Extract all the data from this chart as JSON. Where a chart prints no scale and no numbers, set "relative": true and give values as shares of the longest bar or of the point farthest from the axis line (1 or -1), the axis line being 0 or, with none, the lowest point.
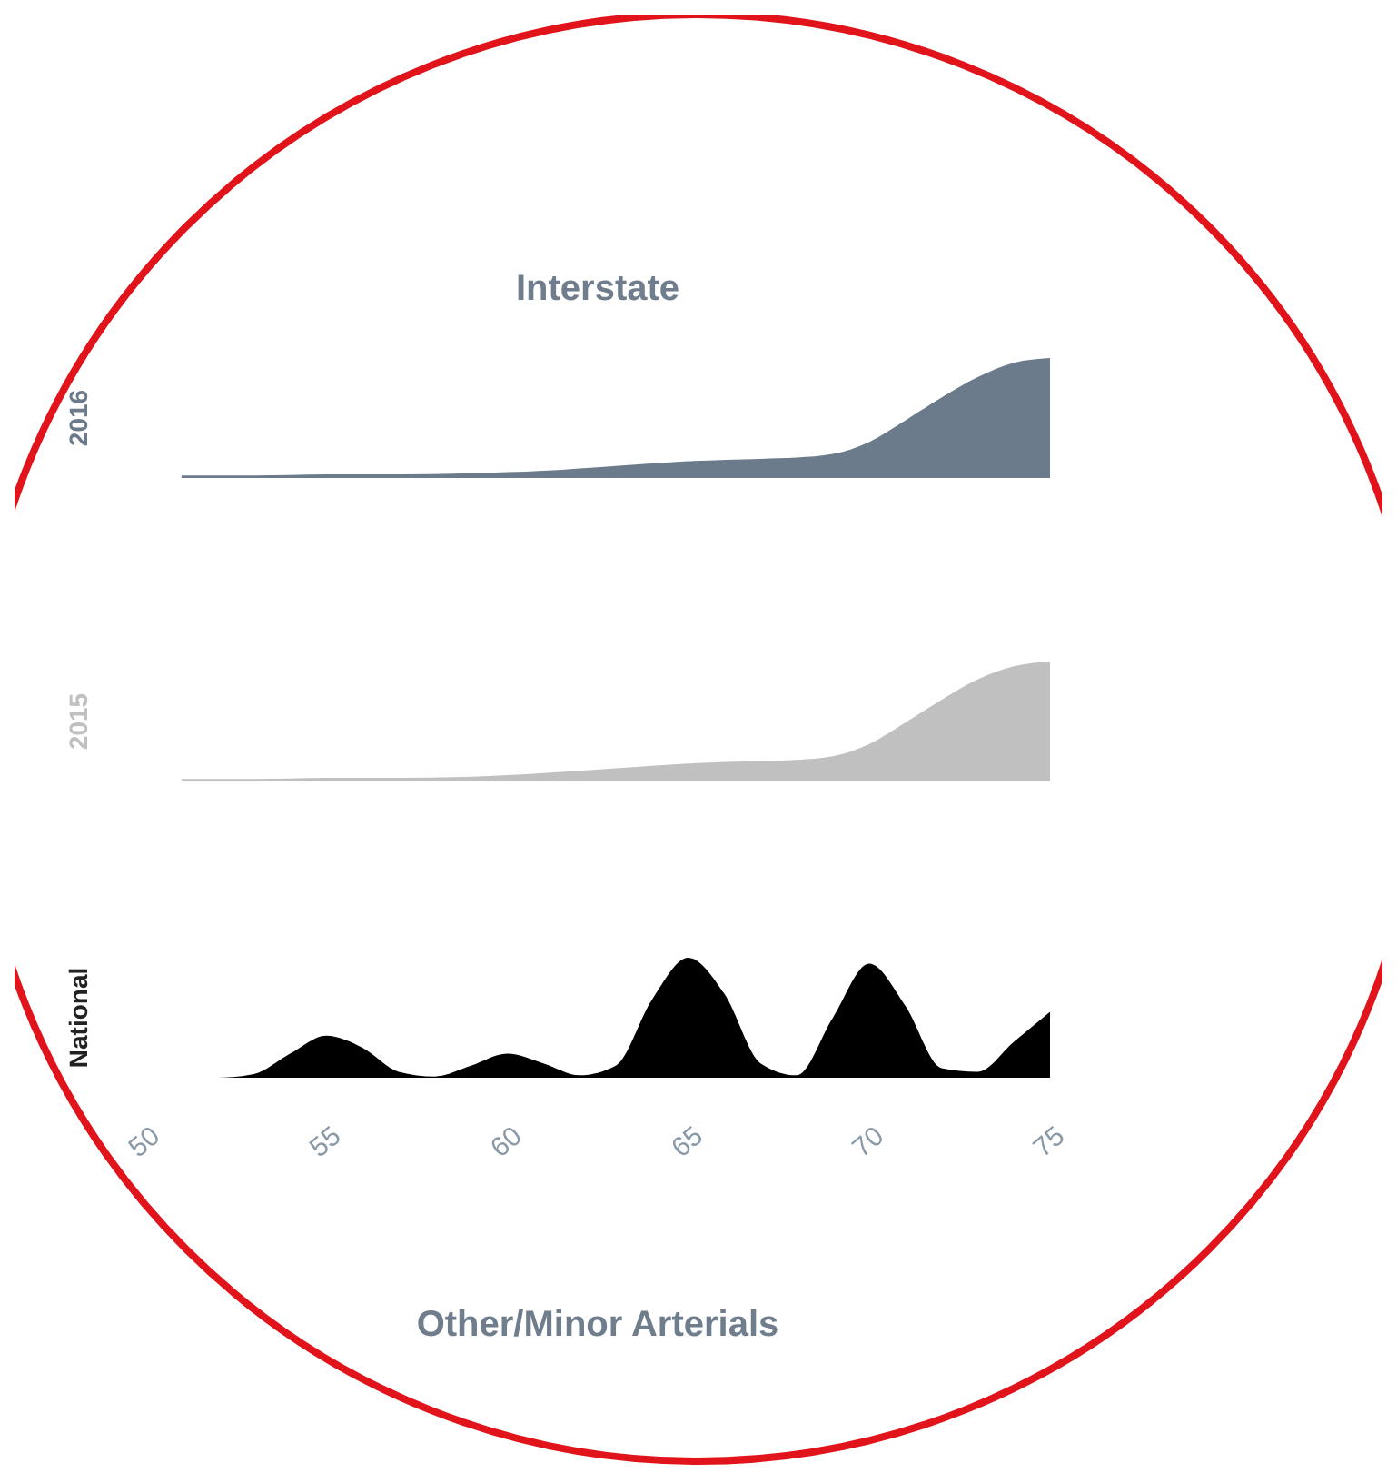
{
  "chart_data": [
    {
      "type": "area",
      "title": "Interstate",
      "ylabel": "2016",
      "relative": true,
      "tick_labels": false,
      "xlim": [
        50,
        75
      ],
      "xticks": [
        50,
        55,
        60,
        65,
        70,
        75
      ],
      "x": [
        51,
        53,
        55,
        57,
        59,
        61,
        63,
        65,
        67,
        68,
        69,
        70,
        71,
        72,
        73,
        74,
        75
      ],
      "series": [
        {
          "color": "#6b7b8c",
          "values": [
            0.02,
            0.02,
            0.03,
            0.03,
            0.04,
            0.06,
            0.1,
            0.14,
            0.16,
            0.17,
            0.2,
            0.3,
            0.48,
            0.67,
            0.84,
            0.96,
            1
          ]
        }
      ]
    },
    {
      "type": "area",
      "ylabel": "2015",
      "relative": true,
      "tick_labels": false,
      "xlim": [
        50,
        75
      ],
      "xticks": [
        50,
        55,
        60,
        65,
        70,
        75
      ],
      "x": [
        51,
        53,
        55,
        57,
        59,
        61,
        63,
        65,
        67,
        68,
        69,
        70,
        71,
        72,
        73,
        74,
        75
      ],
      "series": [
        {
          "color": "#c0c0c0",
          "values": [
            0.02,
            0.02,
            0.03,
            0.03,
            0.04,
            0.07,
            0.11,
            0.15,
            0.17,
            0.18,
            0.21,
            0.31,
            0.49,
            0.68,
            0.85,
            0.96,
            1
          ]
        }
      ]
    },
    {
      "type": "area",
      "ylabel": "National",
      "relative": true,
      "tick_labels": "x",
      "xlim": [
        50,
        75
      ],
      "xticks": [
        50,
        55,
        60,
        65,
        70,
        75
      ],
      "annotations": [
        "Other/Minor Arterials"
      ],
      "x": [
        51,
        52,
        53,
        54,
        55,
        56,
        57,
        58,
        59,
        60,
        61,
        62,
        63,
        64,
        65,
        66,
        67,
        68,
        69,
        70,
        71,
        72,
        73,
        74,
        75
      ],
      "series": [
        {
          "color": "#000000",
          "values": [
            0,
            0,
            0.03,
            0.2,
            0.35,
            0.25,
            0.05,
            0.01,
            0.1,
            0.2,
            0.12,
            0.02,
            0.1,
            0.65,
            1,
            0.7,
            0.12,
            0.02,
            0.5,
            0.95,
            0.6,
            0.08,
            0.05,
            0.3,
            0.55
          ]
        }
      ]
    }
  ]
}
